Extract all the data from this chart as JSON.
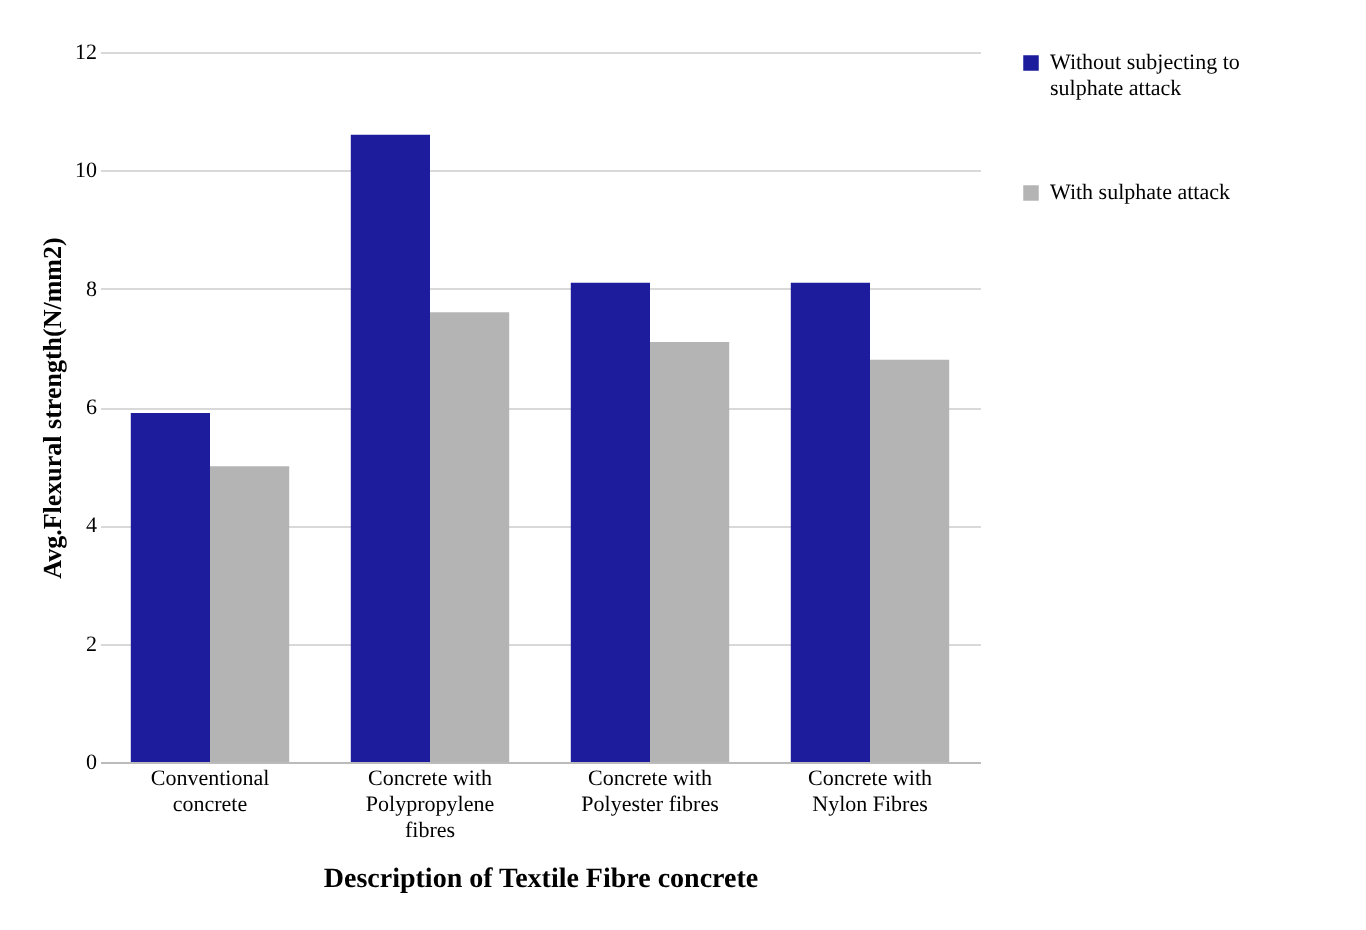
{
  "chart_data": {
    "type": "bar",
    "xlabel": "Description of Textile Fibre concrete",
    "ylabel": "Avg.Flexural strength(N/mm2)",
    "categories": [
      "Conventional concrete",
      "Concrete with Polypropylene fibres",
      "Concrete with Polyester fibres",
      "Concrete with Nylon Fibres"
    ],
    "series": [
      {
        "name": "Without subjecting to sulphate attack",
        "color": "#1c1c9c",
        "values": [
          5.9,
          10.6,
          8.1,
          8.1
        ]
      },
      {
        "name": "With sulphate attack",
        "color": "#b4b4b4",
        "values": [
          5.0,
          7.6,
          7.1,
          6.8
        ]
      }
    ],
    "ylim": [
      0,
      12
    ],
    "yticks": [
      0,
      2,
      4,
      6,
      8,
      10,
      12
    ],
    "grid": "y",
    "legend": "right"
  }
}
